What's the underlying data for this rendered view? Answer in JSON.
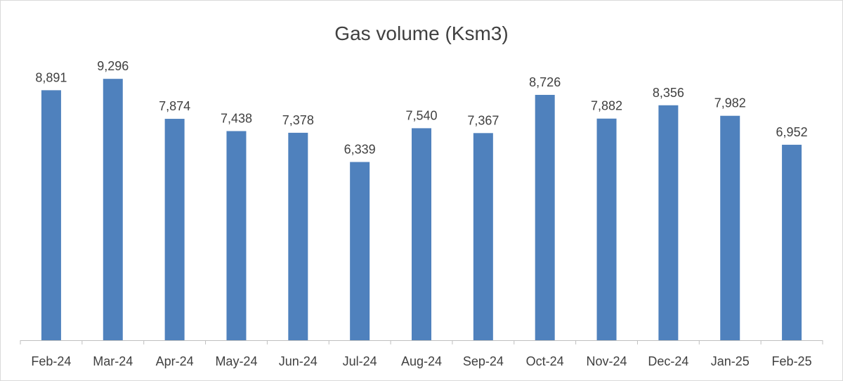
{
  "chart_data": {
    "type": "bar",
    "title": "Gas volume (Ksm3)",
    "xlabel": "",
    "ylabel": "",
    "categories": [
      "Feb-24",
      "Mar-24",
      "Apr-24",
      "May-24",
      "Jun-24",
      "Jul-24",
      "Aug-24",
      "Sep-24",
      "Oct-24",
      "Nov-24",
      "Dec-24",
      "Jan-25",
      "Feb-25"
    ],
    "values": [
      8891,
      9296,
      7874,
      7438,
      7378,
      6339,
      7540,
      7367,
      8726,
      7882,
      8356,
      7982,
      6952
    ],
    "value_labels": [
      "8,891",
      "9,296",
      "7,874",
      "7,438",
      "7,378",
      "6,339",
      "7,540",
      "7,367",
      "8,726",
      "7,882",
      "8,356",
      "7,982",
      "6,952"
    ],
    "ylim": [
      0,
      10000
    ],
    "grid": false,
    "legend": "none",
    "bar_color": "#4f81bd",
    "axis_color": "#bfbfbf",
    "text_color": "#404040"
  }
}
